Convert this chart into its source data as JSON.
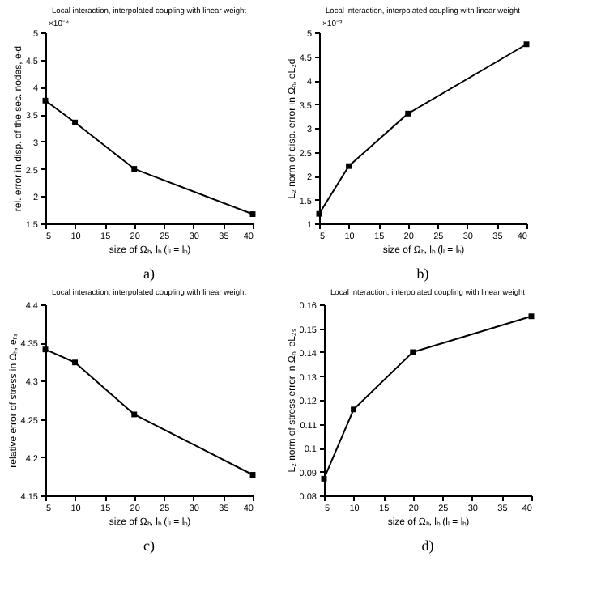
{
  "chart_data": [
    {
      "type": "line",
      "title": "Local interaction, interpolated coupling with linear weight",
      "xlabel": "size of Ωₕ, lₕ (lₗ = lₕ)",
      "ylabel": "rel. error in disp. of the sec. nodes, eᵣd",
      "x": [
        5,
        10,
        20,
        40
      ],
      "series": [
        {
          "color": "#000000",
          "values": [
            3.75,
            3.35,
            2.5,
            1.67
          ]
        }
      ],
      "xlim": [
        5,
        40
      ],
      "xticks": [
        5,
        10,
        15,
        20,
        25,
        30,
        35,
        40
      ],
      "ylim": [
        1.5,
        5
      ],
      "yticks": [
        1.5,
        2,
        2.5,
        3,
        3.5,
        4,
        4.5,
        5
      ],
      "marker": "square",
      "line_style": "solid",
      "grid": false,
      "annotations": [
        "×10⁻⁴",
        "a)"
      ]
    },
    {
      "type": "line",
      "title": "Local interaction, interpolated coupling with linear weight",
      "xlabel": "size of Ωₕ, lₕ (lₗ = lₕ)",
      "ylabel": "L₂ norm of disp. error in Ωₕ, eL₂d",
      "x": [
        5,
        10,
        20,
        40
      ],
      "series": [
        {
          "color": "#000000",
          "values": [
            1.2,
            2.2,
            3.3,
            4.75
          ]
        }
      ],
      "xlim": [
        5,
        40
      ],
      "xticks": [
        5,
        10,
        15,
        20,
        25,
        30,
        35,
        40
      ],
      "ylim": [
        1,
        5
      ],
      "yticks": [
        1,
        1.5,
        2,
        2.5,
        3,
        3.5,
        4,
        4.5,
        5
      ],
      "marker": "square",
      "line_style": "solid",
      "grid": false,
      "annotations": [
        "×10⁻³",
        "b)"
      ]
    },
    {
      "type": "line",
      "title": "Local interaction, interpolated coupling with linear weight",
      "xlabel": "size of Ωₕ, lₕ (lₗ = lₕ)",
      "ylabel": "relative error of stress in Ωₕ, eᵣₛ",
      "x": [
        5,
        10,
        20,
        40
      ],
      "series": [
        {
          "color": "#000000",
          "values": [
            4.341,
            4.324,
            4.256,
            4.177
          ]
        }
      ],
      "xlim": [
        5,
        40
      ],
      "xticks": [
        5,
        10,
        15,
        20,
        25,
        30,
        35,
        40
      ],
      "ylim": [
        4.15,
        4.4
      ],
      "yticks": [
        4.15,
        4.2,
        4.25,
        4.3,
        4.35,
        4.4
      ],
      "marker": "square",
      "line_style": "solid",
      "grid": false,
      "annotations": [
        "c)"
      ]
    },
    {
      "type": "line",
      "title": "Local interaction, interpolated coupling with linear weight",
      "xlabel": "size of Ωₕ, lₕ (lₗ = lₕ)",
      "ylabel": "L₂ norm of stress error in Ωₕ, eL₂ₛ",
      "x": [
        5,
        10,
        20,
        40
      ],
      "series": [
        {
          "color": "#000000",
          "values": [
            0.087,
            0.116,
            0.14,
            0.155
          ]
        }
      ],
      "xlim": [
        5,
        40
      ],
      "xticks": [
        5,
        10,
        15,
        20,
        25,
        30,
        35,
        40
      ],
      "ylim": [
        0.08,
        0.16
      ],
      "yticks": [
        0.08,
        0.09,
        0.1,
        0.11,
        0.12,
        0.13,
        0.14,
        0.15,
        0.16
      ],
      "marker": "square",
      "line_style": "solid",
      "grid": false,
      "annotations": [
        "d)"
      ]
    }
  ]
}
